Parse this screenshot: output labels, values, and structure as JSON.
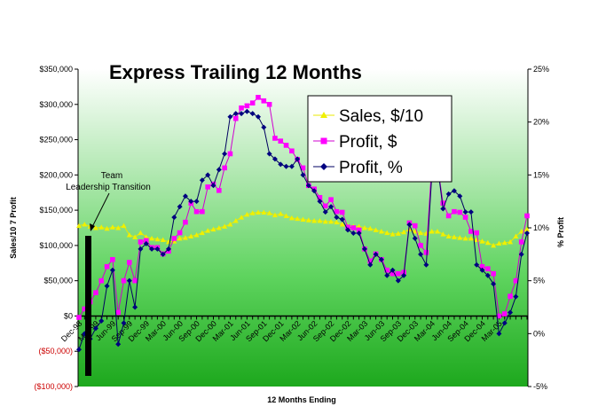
{
  "chart_data": {
    "type": "line",
    "title": "Express Trailing 12 Months",
    "xlabel": "12 Months Ending",
    "ylabel": "Sales/10  7 Profit",
    "y2label": "% Profit",
    "ylim": [
      -100000,
      350000
    ],
    "y2lim": [
      -5,
      25
    ],
    "yticks": [
      350000,
      300000,
      250000,
      200000,
      150000,
      100000,
      50000,
      0,
      -50000,
      -100000
    ],
    "ytick_labels": [
      "$350,000",
      "$300,000",
      "$250,000",
      "$200,000",
      "$150,000",
      "$100,000",
      "$50,000",
      "$0",
      "($50,000)",
      "($100,000)"
    ],
    "y2ticks": [
      25,
      20,
      15,
      10,
      5,
      0,
      -5
    ],
    "y2tick_labels": [
      "25%",
      "20%",
      "15%",
      "10%",
      "5%",
      "0%",
      "-5%"
    ],
    "x_tick_labels": [
      "Dec-98",
      "Mar-99",
      "Jun-99",
      "Sep-99",
      "Dec-99",
      "Mar-00",
      "Jun-00",
      "Sep-00",
      "Dec-00",
      "Mar-01",
      "Jun-01",
      "Sep-01",
      "Dec-01",
      "Mar-02",
      "Jun-02",
      "Sep-02",
      "Dec-02",
      "Mar-03",
      "Jun-03",
      "Sep-03",
      "Dec-03",
      "Mar-04",
      "Jun-04",
      "Sep-04",
      "Dec-04",
      "Mar-05"
    ],
    "legend_position": "top-right",
    "colors": {
      "sales": "#f0f000",
      "profit_dollar": "#ff00ff",
      "profit_pct": "#000080"
    },
    "annotation": {
      "text_line1": "Team",
      "text_line2": "Leadership Transition"
    },
    "series": [
      {
        "name": "Sales, $/10",
        "axis": "left",
        "values": [
          128000,
          130000,
          127000,
          125000,
          126000,
          124000,
          126000,
          125000,
          128000,
          115000,
          112000,
          118000,
          112000,
          110000,
          109000,
          108000,
          105000,
          106000,
          110000,
          111000,
          113000,
          115000,
          118000,
          121000,
          123000,
          125000,
          127000,
          130000,
          135000,
          140000,
          144000,
          146000,
          147000,
          147000,
          146000,
          143000,
          145000,
          142000,
          139000,
          138000,
          137000,
          136000,
          135000,
          135000,
          134000,
          134000,
          133000,
          130000,
          128000,
          127000,
          127000,
          125000,
          124000,
          122000,
          120000,
          118000,
          116000,
          117000,
          119000,
          123000,
          120000,
          118000,
          117000,
          120000,
          120000,
          116000,
          113000,
          112000,
          111000,
          110000,
          110000,
          108000,
          106000,
          104000,
          100000,
          103000,
          104000,
          105000,
          113000,
          120000,
          123000
        ]
      },
      {
        "name": "Profit, $",
        "axis": "left",
        "values": [
          -2000,
          10000,
          20000,
          33000,
          50000,
          70000,
          80000,
          5000,
          50000,
          76000,
          50000,
          105000,
          107000,
          97000,
          97000,
          88000,
          92000,
          110000,
          118000,
          133000,
          160000,
          148000,
          148000,
          183000,
          187000,
          178000,
          210000,
          230000,
          280000,
          295000,
          298000,
          302000,
          310000,
          305000,
          300000,
          252000,
          248000,
          242000,
          234000,
          222000,
          210000,
          185000,
          180000,
          168000,
          156000,
          165000,
          148000,
          147000,
          126000,
          125000,
          122000,
          95000,
          78000,
          88000,
          80000,
          65000,
          60000,
          60000,
          62000,
          132000,
          128000,
          100000,
          90000,
          215000,
          215000,
          160000,
          142000,
          148000,
          147000,
          140000,
          120000,
          118000,
          70000,
          67000,
          60000,
          0,
          3000,
          28000,
          50000,
          105000,
          142000
        ]
      },
      {
        "name": "Profit, %",
        "axis": "right",
        "values": [
          -1.5,
          0,
          -0.5,
          0.5,
          1.2,
          4.5,
          6.0,
          -1.0,
          1.0,
          5.0,
          2.5,
          8.0,
          8.5,
          8.0,
          8.0,
          7.5,
          8.0,
          11.0,
          12.0,
          13.0,
          12.5,
          12.5,
          14.5,
          15.0,
          14.0,
          15.5,
          17.0,
          20.5,
          20.8,
          20.8,
          21.0,
          20.8,
          20.5,
          19.5,
          17.0,
          16.5,
          16.0,
          15.8,
          15.8,
          16.5,
          15.0,
          14.0,
          13.5,
          12.5,
          11.5,
          12.0,
          11.0,
          10.8,
          9.8,
          9.5,
          9.5,
          8.0,
          6.5,
          7.5,
          7.0,
          5.5,
          6.0,
          5.0,
          5.5,
          10.3,
          9.0,
          7.5,
          6.5,
          15.0,
          16.0,
          11.8,
          13.2,
          13.5,
          13.0,
          11.5,
          11.5,
          6.5,
          6.0,
          5.5,
          4.7,
          0,
          1.0,
          2.0,
          3.5,
          7.5,
          9.5
        ]
      }
    ]
  }
}
